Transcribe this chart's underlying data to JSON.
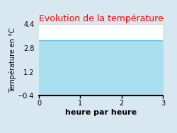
{
  "title": "Evolution de la température",
  "title_color": "#ff0000",
  "xlabel": "heure par heure",
  "ylabel": "Température en °C",
  "x_data": [
    0,
    3
  ],
  "y_data": [
    3.3,
    3.3
  ],
  "fill_color": "#aadff0",
  "line_color": "#55bbdd",
  "fill_alpha": 1.0,
  "ylim": [
    -0.4,
    4.4
  ],
  "xlim": [
    0,
    3
  ],
  "yticks": [
    -0.4,
    1.2,
    2.8,
    4.4
  ],
  "xticks": [
    0,
    1,
    2,
    3
  ],
  "background_color": "#d8e8f0",
  "plot_bg_color": "#ffffff",
  "title_fontsize": 9,
  "xlabel_fontsize": 8,
  "ylabel_fontsize": 7,
  "tick_fontsize": 7
}
